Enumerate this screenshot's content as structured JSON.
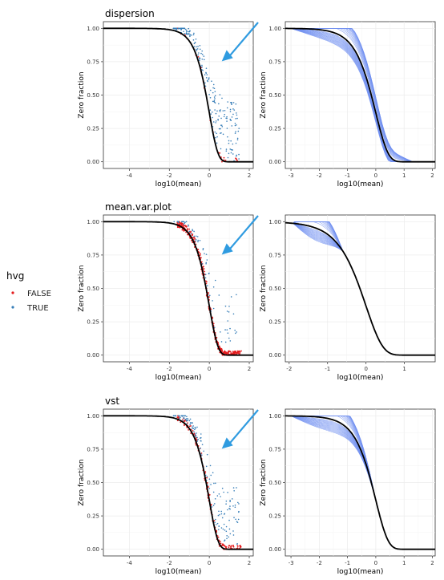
{
  "legend": {
    "title": "hvg",
    "items": [
      {
        "label": "FALSE",
        "color": "#e41a1c"
      },
      {
        "label": "TRUE",
        "color": "#377eb8"
      }
    ]
  },
  "colors": {
    "curve": "#000000",
    "contour": "#6f8ef0",
    "arrow": "#2f9be0",
    "grid": "#ebebeb"
  },
  "chart_data": [
    {
      "type": "scatter",
      "title": "dispersion",
      "xlabel": "log10(mean)",
      "ylabel": "Zero fraction",
      "xlim": [
        -5.3,
        2.2
      ],
      "ylim": [
        -0.05,
        1.05
      ],
      "xticks": [
        -4,
        -2,
        0,
        2
      ],
      "yticks": [
        0.0,
        0.25,
        0.5,
        0.75,
        1.0
      ],
      "curve": "zero fraction = exp(-10^x)",
      "red_density": "low",
      "blue_density": "high",
      "arrow": true
    },
    {
      "type": "line",
      "title": "",
      "xlabel": "log10(mean)",
      "ylabel": "Zero fraction",
      "xlim": [
        -3.2,
        2.1
      ],
      "ylim": [
        -0.05,
        1.05
      ],
      "xticks": [
        -3,
        -2,
        -1,
        0,
        1,
        2
      ],
      "yticks": [
        0.0,
        0.25,
        0.5,
        0.75,
        1.0
      ],
      "curve": "zero fraction = exp(-10^x)",
      "contour_range": [
        -3,
        1.3
      ]
    },
    {
      "type": "scatter",
      "title": "mean.var.plot",
      "xlabel": "log10(mean)",
      "ylabel": "Zero fraction",
      "xlim": [
        -5.3,
        2.2
      ],
      "ylim": [
        -0.05,
        1.05
      ],
      "xticks": [
        -4,
        -2,
        0,
        2
      ],
      "yticks": [
        0.0,
        0.25,
        0.5,
        0.75,
        1.0
      ],
      "curve": "zero fraction = exp(-10^x)",
      "red_density": "high",
      "blue_density": "low",
      "arrow": true
    },
    {
      "type": "line",
      "title": "",
      "xlabel": "log10(mean)",
      "ylabel": "Zero fraction",
      "xlim": [
        -2.1,
        1.8
      ],
      "ylim": [
        -0.05,
        1.05
      ],
      "xticks": [
        -2,
        -1,
        0,
        1
      ],
      "yticks": [
        0.0,
        0.25,
        0.5,
        0.75,
        1.0
      ],
      "curve": "zero fraction = exp(-10^x)",
      "contour_range": [
        -1.9,
        -0.6
      ]
    },
    {
      "type": "scatter",
      "title": "vst",
      "xlabel": "log10(mean)",
      "ylabel": "Zero fraction",
      "xlim": [
        -5.3,
        2.2
      ],
      "ylim": [
        -0.05,
        1.05
      ],
      "xticks": [
        -4,
        -2,
        0,
        2
      ],
      "yticks": [
        0.0,
        0.25,
        0.5,
        0.75,
        1.0
      ],
      "curve": "zero fraction = exp(-10^x)",
      "red_density": "medium",
      "blue_density": "medium",
      "arrow": true
    },
    {
      "type": "line",
      "title": "",
      "xlabel": "log10(mean)",
      "ylabel": "Zero fraction",
      "xlim": [
        -3.2,
        2.1
      ],
      "ylim": [
        -0.05,
        1.05
      ],
      "xticks": [
        -3,
        -2,
        -1,
        0,
        1,
        2
      ],
      "yticks": [
        0.0,
        0.25,
        0.5,
        0.75,
        1.0
      ],
      "curve": "zero fraction = exp(-10^x)",
      "contour_range": [
        -3,
        0
      ]
    }
  ]
}
